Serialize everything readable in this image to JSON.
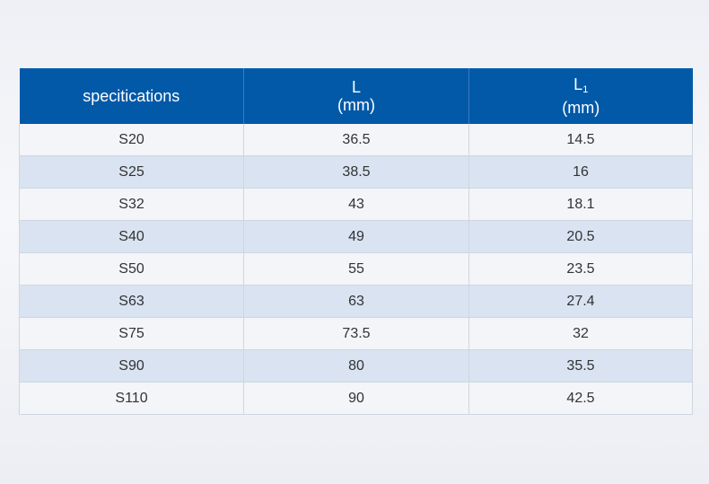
{
  "table": {
    "header": {
      "spec": "specitications",
      "l_name": "L",
      "l_unit": "(mm)",
      "l1_name": "L",
      "l1_sub": "1",
      "l1_unit": "(mm)"
    },
    "rows": [
      {
        "spec": "S20",
        "l": "36.5",
        "l1": "14.5"
      },
      {
        "spec": "S25",
        "l": "38.5",
        "l1": "16"
      },
      {
        "spec": "S32",
        "l": "43",
        "l1": "18.1"
      },
      {
        "spec": "S40",
        "l": "49",
        "l1": "20.5"
      },
      {
        "spec": "S50",
        "l": "55",
        "l1": "23.5"
      },
      {
        "spec": "S63",
        "l": "63",
        "l1": "27.4"
      },
      {
        "spec": "S75",
        "l": "73.5",
        "l1": "32"
      },
      {
        "spec": "S90",
        "l": "80",
        "l1": "35.5"
      },
      {
        "spec": "S110",
        "l": "90",
        "l1": "42.5"
      }
    ]
  },
  "colors": {
    "header_bg": "#0259a8",
    "row_light": "#f4f5f8",
    "row_blue": "#d9e3f1"
  }
}
